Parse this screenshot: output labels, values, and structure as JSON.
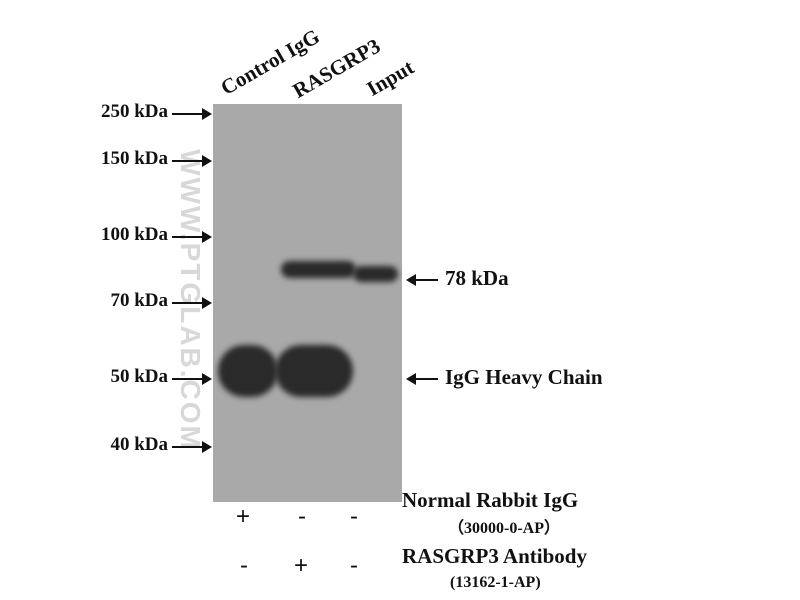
{
  "lanes": [
    "Control IgG",
    "RASGRP3",
    "Input"
  ],
  "markers": [
    "250 kDa",
    "150 kDa",
    "100 kDa",
    "70 kDa",
    "50 kDa",
    "40 kDa"
  ],
  "watermark": "WWW.PTGLAB.COM",
  "annotations": {
    "band_78": "78 kDa",
    "heavy_chain": "IgG Heavy Chain"
  },
  "conditions": [
    {
      "label": "Normal Rabbit IgG",
      "catalog": "（30000-0-AP）",
      "signs": [
        "+",
        "-",
        "-"
      ]
    },
    {
      "label": "RASGRP3 Antibody",
      "catalog": "(13162-1-AP)",
      "signs": [
        "-",
        "+",
        "-"
      ]
    }
  ],
  "colors": {
    "membrane": "#a9a9a9",
    "band": "#2a2a2a"
  }
}
